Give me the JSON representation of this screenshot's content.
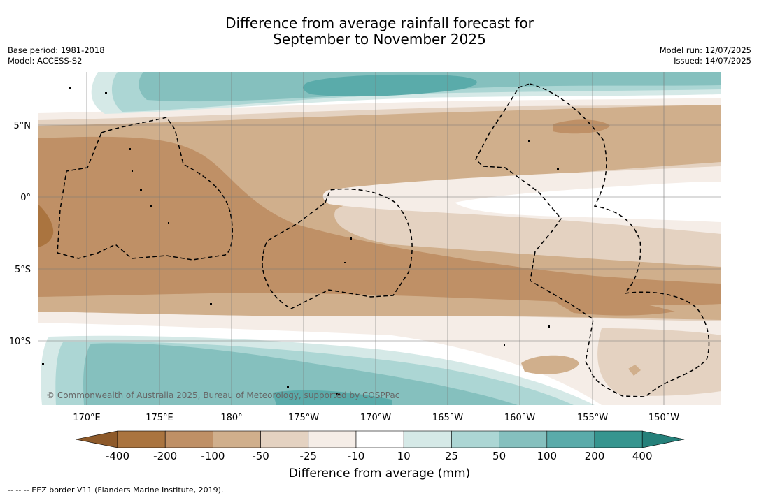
{
  "header": {
    "title_line1": "Difference from average rainfall forecast for",
    "title_line2": "September to November 2025",
    "base_period": "Base period: 1981-2018",
    "model": "Model: ACCESS-S2",
    "model_run": "Model run: 12/07/2025",
    "issued": "Issued: 14/07/2025"
  },
  "map": {
    "lat_labels": [
      "5°N",
      "0°",
      "5°S",
      "10°S"
    ],
    "lon_labels": [
      "170°E",
      "175°E",
      "180°",
      "175°W",
      "170°W",
      "165°W",
      "160°W",
      "155°W",
      "150°W"
    ],
    "copyright": "© Commonwealth of Australia 2025, Bureau of Meteorology, supported by COSPPac"
  },
  "legend": {
    "tick_labels": [
      "-400",
      "-200",
      "-100",
      "-50",
      "-25",
      "-10",
      "10",
      "25",
      "50",
      "100",
      "200",
      "400"
    ],
    "colors": [
      "#8e5a2a",
      "#aa743f",
      "#bf9066",
      "#d0af8c",
      "#e4d2c1",
      "#f5ede7",
      "#ffffff",
      "#d5e9e7",
      "#acd6d4",
      "#85c0be",
      "#5aabaa",
      "#36958f",
      "#25807a"
    ],
    "title": "Difference from average (mm)"
  },
  "footer": {
    "note": "--  --  -- EEZ border V11 (Flanders Marine Institute, 2019)."
  }
}
